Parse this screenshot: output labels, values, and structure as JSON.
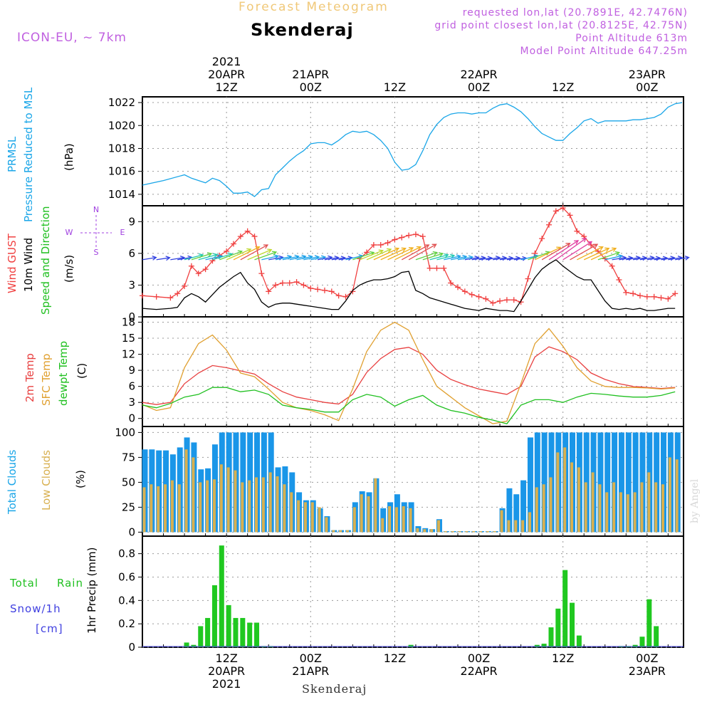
{
  "header": {
    "subtitle": "Forecast Meteogram",
    "title": "Skenderaj",
    "model": "ICON-EU, ~ 7km",
    "requested": "requested lon,lat (20.7891E, 42.7476N)",
    "gridpoint": "grid point closest lon,lat (20.8125E, 42.75N)",
    "point_alt": "Point Altitude 613m",
    "model_alt": "Model Point Altitude 647.25m"
  },
  "footer": {
    "place": "Skenderaj",
    "watermark": "by Angel"
  },
  "colors": {
    "pressure": "#1aa6e8",
    "gust": "#f04040",
    "wind": "#000000",
    "temp": "#e84040",
    "sfc": "#e0a030",
    "dew": "#20c020",
    "cloud_total": "#1a96e8",
    "cloud_low": "#d8b050",
    "precip": "#20c820",
    "snow": "#4040e0",
    "compass": "#a040e0"
  },
  "time_axis": {
    "top_year": "2021",
    "top_labels": [
      {
        "h": 12,
        "l1": "20APR",
        "l2": "12Z"
      },
      {
        "h": 24,
        "l1": "21APR",
        "l2": "00Z"
      },
      {
        "h": 36,
        "l1": "",
        "l2": "12Z"
      },
      {
        "h": 48,
        "l1": "22APR",
        "l2": "00Z"
      },
      {
        "h": 60,
        "l1": "",
        "l2": "12Z"
      },
      {
        "h": 72,
        "l1": "23APR",
        "l2": "00Z"
      }
    ],
    "bottom_labels": [
      {
        "h": 12,
        "l1": "12Z",
        "l2": "20APR",
        "l3": "2021"
      },
      {
        "h": 24,
        "l1": "00Z",
        "l2": "21APR",
        "l3": ""
      },
      {
        "h": 36,
        "l1": "12Z",
        "l2": "",
        "l3": ""
      },
      {
        "h": 48,
        "l1": "00Z",
        "l2": "22APR",
        "l3": ""
      },
      {
        "h": 60,
        "l1": "12Z",
        "l2": "",
        "l3": ""
      },
      {
        "h": 72,
        "l1": "00Z",
        "l2": "23APR",
        "l3": ""
      }
    ]
  },
  "panels": {
    "pressure": {
      "labels": [
        "PRMSL",
        "Pressure Reduced to MSL"
      ],
      "unit": "(hPa)",
      "ticks": [
        "1014",
        "1016",
        "1018",
        "1020",
        "1022"
      ]
    },
    "wind": {
      "labels": [
        "Wind GUST",
        "10m Wind",
        "Speed and Direction"
      ],
      "unit": "(m/s)",
      "ticks": [
        "0",
        "3",
        "6",
        "9"
      ],
      "compass": {
        "n": "N",
        "s": "S",
        "w": "W",
        "e": "E"
      }
    },
    "temp": {
      "labels": [
        "2m Temp",
        "SFC Temp",
        "dewpt Temp"
      ],
      "unit": "(C)",
      "ticks": [
        "0",
        "3",
        "6",
        "9",
        "12",
        "15",
        "18"
      ]
    },
    "clouds": {
      "labels": [
        "Total Clouds",
        "Low Clouds"
      ],
      "unit": "(%)",
      "ticks": [
        "0",
        "25",
        "50",
        "75",
        "100"
      ]
    },
    "precip": {
      "labels": [
        "Total",
        "Rain",
        "Snow/1h",
        "[cm]"
      ],
      "axis_label": "1hr Precip (mm)",
      "ticks": [
        "0",
        "0.2",
        "0.4",
        "0.6",
        "0.8"
      ]
    }
  },
  "chart_data": [
    {
      "type": "line",
      "title": "PRMSL Pressure Reduced to MSL",
      "ylabel": "hPa",
      "ylim": [
        1013,
        1022.5
      ],
      "x_hours": [
        0,
        3,
        6,
        7,
        9,
        10,
        11,
        12,
        13,
        14,
        15,
        16,
        17,
        18,
        19,
        20,
        21,
        22,
        23,
        24,
        25,
        26,
        27,
        28,
        29,
        30,
        31,
        32,
        33,
        34,
        35,
        36,
        37,
        38,
        39,
        40,
        41,
        42,
        43,
        44,
        45,
        46,
        47,
        48,
        49,
        50,
        51,
        52,
        53,
        54,
        55,
        56,
        57,
        58,
        59,
        60,
        61,
        62,
        63,
        64,
        65,
        66,
        67,
        68,
        69,
        70,
        71,
        72,
        73,
        74,
        75,
        76,
        77
      ],
      "values": [
        1014.8,
        1015.2,
        1015.7,
        1015.4,
        1015.0,
        1015.4,
        1015.2,
        1014.7,
        1014.1,
        1014.1,
        1014.2,
        1013.8,
        1014.4,
        1014.5,
        1015.7,
        1016.3,
        1016.9,
        1017.4,
        1017.8,
        1018.4,
        1018.5,
        1018.5,
        1018.3,
        1018.7,
        1019.2,
        1019.5,
        1019.4,
        1019.5,
        1019.2,
        1018.7,
        1018.0,
        1016.8,
        1016.1,
        1016.2,
        1016.6,
        1017.8,
        1019.2,
        1020.1,
        1020.7,
        1021.0,
        1021.1,
        1021.1,
        1021.0,
        1021.1,
        1021.1,
        1021.5,
        1021.8,
        1021.9,
        1021.6,
        1021.2,
        1020.6,
        1019.9,
        1019.3,
        1019.0,
        1018.7,
        1018.7,
        1019.3,
        1019.8,
        1020.4,
        1020.6,
        1020.2,
        1020.4,
        1020.4,
        1020.4,
        1020.4,
        1020.5,
        1020.5,
        1020.6,
        1020.7,
        1021.0,
        1021.6,
        1021.9,
        1022.0
      ]
    },
    {
      "type": "line",
      "title": "Wind GUST / 10m Wind Speed",
      "ylabel": "m/s",
      "ylim": [
        0,
        10.5
      ],
      "x_hours": [
        0,
        2,
        4,
        5,
        6,
        7,
        8,
        9,
        10,
        11,
        12,
        13,
        14,
        15,
        16,
        17,
        18,
        19,
        20,
        21,
        22,
        23,
        24,
        25,
        26,
        27,
        28,
        29,
        30,
        31,
        32,
        33,
        34,
        35,
        36,
        37,
        38,
        39,
        40,
        41,
        42,
        43,
        44,
        45,
        46,
        47,
        48,
        49,
        50,
        51,
        52,
        53,
        54,
        55,
        56,
        57,
        58,
        59,
        60,
        61,
        62,
        63,
        64,
        65,
        66,
        67,
        68,
        69,
        70,
        71,
        72,
        73,
        74,
        75,
        76
      ],
      "series": [
        {
          "name": "Wind GUST",
          "values": [
            2.0,
            1.9,
            1.8,
            2.2,
            2.9,
            4.8,
            4.1,
            4.5,
            5.3,
            5.8,
            6.2,
            6.9,
            7.6,
            8.1,
            7.6,
            4.1,
            2.4,
            3.0,
            3.2,
            3.2,
            3.3,
            3.0,
            2.7,
            2.6,
            2.5,
            2.4,
            2.0,
            1.9,
            2.4,
            5.5,
            6.1,
            6.8,
            6.8,
            7.0,
            7.3,
            7.5,
            7.7,
            7.8,
            7.6,
            4.6,
            4.6,
            4.6,
            3.2,
            2.8,
            2.4,
            2.1,
            1.9,
            1.7,
            1.3,
            1.5,
            1.6,
            1.6,
            1.4,
            3.6,
            6.0,
            7.4,
            8.7,
            10.0,
            10.3,
            9.6,
            8.1,
            7.6,
            6.8,
            6.2,
            5.5,
            4.8,
            3.5,
            2.3,
            2.2,
            2.0,
            1.9,
            1.9,
            1.8,
            1.7,
            2.2
          ]
        },
        {
          "name": "10m Wind",
          "values": [
            0.8,
            0.7,
            0.8,
            0.9,
            1.8,
            2.2,
            1.9,
            1.4,
            2.1,
            2.8,
            3.3,
            3.8,
            4.2,
            3.2,
            2.6,
            1.4,
            0.9,
            1.2,
            1.3,
            1.3,
            1.2,
            1.1,
            1.0,
            0.9,
            0.8,
            0.7,
            0.7,
            1.5,
            2.5,
            3.0,
            3.3,
            3.5,
            3.5,
            3.6,
            3.8,
            4.2,
            4.3,
            2.5,
            2.2,
            1.8,
            1.6,
            1.4,
            1.2,
            1.0,
            0.8,
            0.7,
            0.6,
            0.8,
            0.7,
            0.6,
            0.6,
            0.5,
            1.5,
            2.6,
            3.7,
            4.5,
            5.0,
            5.4,
            4.8,
            4.3,
            3.8,
            3.5,
            3.5,
            2.5,
            1.5,
            0.8,
            0.7,
            0.8,
            0.7,
            0.8,
            0.6,
            0.6,
            0.7,
            0.8,
            0.8
          ]
        }
      ]
    },
    {
      "type": "line",
      "title": "2m Temp / SFC Temp / dewpt Temp",
      "ylabel": "C",
      "ylim": [
        -1.5,
        19
      ],
      "x_hours": [
        0,
        2,
        4,
        6,
        8,
        10,
        12,
        14,
        16,
        18,
        20,
        22,
        24,
        26,
        28,
        30,
        32,
        34,
        36,
        38,
        40,
        42,
        44,
        46,
        48,
        50,
        52,
        54,
        56,
        58,
        60,
        62,
        64,
        66,
        68,
        70,
        72,
        74,
        76
      ],
      "series": [
        {
          "name": "2m Temp",
          "values": [
            3.0,
            2.6,
            3.0,
            6.5,
            8.5,
            9.9,
            9.5,
            8.9,
            8.3,
            6.5,
            5.0,
            4.0,
            3.5,
            3.0,
            2.7,
            4.5,
            8.6,
            11.2,
            12.9,
            13.3,
            12.0,
            9.0,
            7.3,
            6.3,
            5.5,
            5.0,
            4.5,
            6.0,
            11.5,
            13.4,
            12.5,
            11.0,
            8.5,
            7.3,
            6.5,
            6.0,
            5.8,
            5.6,
            5.8
          ]
        },
        {
          "name": "SFC Temp",
          "values": [
            2.6,
            1.5,
            2.0,
            9.5,
            14.0,
            15.6,
            12.8,
            8.5,
            7.8,
            5.5,
            3.0,
            2.0,
            1.5,
            0.7,
            -0.4,
            5.5,
            12.5,
            16.5,
            18.0,
            16.5,
            11.0,
            6.0,
            4.0,
            2.0,
            0.5,
            -1.0,
            -0.5,
            6.5,
            14.0,
            16.8,
            13.5,
            9.5,
            7.0,
            6.0,
            5.8,
            5.8,
            5.7,
            5.5,
            5.7
          ]
        },
        {
          "name": "dewpt Temp",
          "values": [
            2.5,
            2.0,
            2.8,
            4.0,
            4.5,
            5.8,
            5.8,
            5.0,
            5.3,
            4.5,
            2.5,
            2.0,
            1.7,
            1.2,
            1.2,
            3.5,
            4.5,
            4.0,
            2.3,
            3.5,
            4.3,
            2.5,
            1.5,
            1.0,
            0.2,
            -0.3,
            -1.0,
            2.5,
            3.5,
            3.5,
            3.0,
            4.0,
            4.7,
            4.5,
            4.2,
            4.0,
            4.0,
            4.3,
            5.0
          ]
        }
      ]
    },
    {
      "type": "bar",
      "title": "Total Clouds / Low Clouds",
      "ylabel": "%",
      "ylim": [
        0,
        100
      ],
      "x_hours": [
        0,
        1,
        2,
        3,
        4,
        5,
        6,
        7,
        8,
        9,
        10,
        11,
        12,
        13,
        14,
        15,
        16,
        17,
        18,
        19,
        20,
        21,
        22,
        23,
        24,
        25,
        26,
        27,
        28,
        29,
        30,
        31,
        32,
        33,
        34,
        35,
        36,
        37,
        38,
        39,
        40,
        41,
        42,
        43,
        44,
        45,
        46,
        47,
        48,
        49,
        50,
        51,
        52,
        53,
        54,
        55,
        56,
        57,
        58,
        59,
        60,
        61,
        62,
        63,
        64,
        65,
        66,
        67,
        68,
        69,
        70,
        71,
        72,
        73,
        74,
        75,
        76
      ],
      "series": [
        {
          "name": "Total Clouds",
          "values": [
            83,
            83,
            82,
            82,
            78,
            85,
            95,
            90,
            63,
            64,
            88,
            100,
            100,
            100,
            100,
            100,
            100,
            100,
            100,
            65,
            66,
            60,
            40,
            32,
            32,
            24,
            16,
            2,
            2,
            2,
            30,
            41,
            40,
            54,
            24,
            30,
            38,
            30,
            30,
            6,
            4,
            3,
            13,
            1,
            1,
            1,
            1,
            1,
            1,
            1,
            1,
            24,
            44,
            38,
            52,
            95,
            100,
            100,
            100,
            100,
            100,
            100,
            100,
            100,
            100,
            100,
            100,
            100,
            100,
            100,
            100,
            100,
            100,
            100,
            100,
            100,
            100
          ]
        },
        {
          "name": "Low Clouds",
          "values": [
            45,
            48,
            46,
            48,
            52,
            48,
            83,
            75,
            50,
            52,
            53,
            68,
            65,
            62,
            50,
            52,
            55,
            55,
            60,
            56,
            48,
            40,
            32,
            30,
            30,
            25,
            15,
            2,
            2,
            2,
            25,
            38,
            36,
            54,
            14,
            26,
            25,
            26,
            24,
            4,
            3,
            3,
            12,
            1,
            1,
            1,
            1,
            1,
            1,
            1,
            1,
            22,
            12,
            12,
            12,
            20,
            45,
            48,
            55,
            80,
            85,
            70,
            65,
            50,
            60,
            48,
            40,
            50,
            40,
            38,
            40,
            50,
            60,
            50,
            48,
            75,
            73
          ]
        }
      ]
    },
    {
      "type": "bar",
      "title": "Total Rain 1hr Precip",
      "ylabel": "mm",
      "ylim": [
        0,
        0.95
      ],
      "x_hours": [
        6,
        7,
        8,
        9,
        10,
        11,
        12,
        13,
        14,
        15,
        16,
        17,
        18,
        19,
        20,
        23,
        28,
        33,
        38,
        56,
        57,
        58,
        59,
        60,
        61,
        62,
        63,
        64,
        65,
        66,
        67,
        68,
        69,
        70,
        71,
        72,
        73,
        74,
        75,
        76
      ],
      "values": [
        0.04,
        0.02,
        0.18,
        0.25,
        0.53,
        0.87,
        0.36,
        0.25,
        0.25,
        0.21,
        0.21,
        0.01,
        0.01,
        0,
        0,
        0,
        0,
        0,
        0.02,
        0.02,
        0.03,
        0.17,
        0.33,
        0.66,
        0.38,
        0.1,
        0,
        0,
        0,
        0,
        0,
        0.01,
        0.01,
        0.02,
        0.09,
        0.41,
        0.18,
        0,
        0,
        0
      ]
    }
  ]
}
